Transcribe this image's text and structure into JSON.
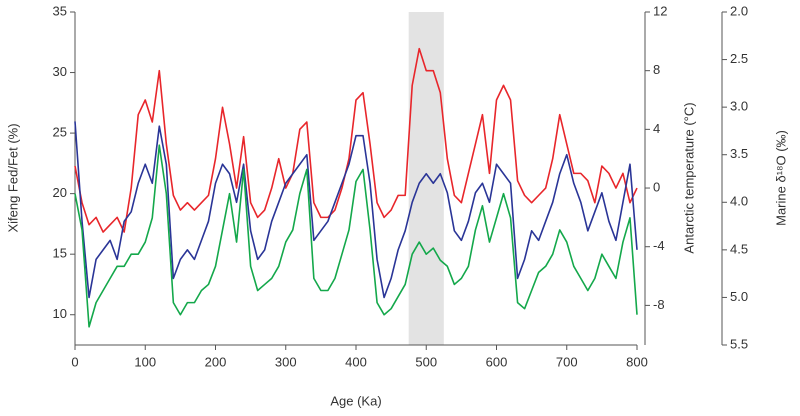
{
  "chart_data": {
    "type": "line",
    "xlabel": "Age (Ka)",
    "ylabel": "Xifeng Fed/Fet (%)",
    "y2label": "Antarctic temperature (°C)",
    "y3label": "Marine δ¹⁸O (‰)",
    "xlim": [
      0,
      800
    ],
    "xticks": [
      0,
      100,
      200,
      300,
      400,
      500,
      600,
      700,
      800
    ],
    "ylim": [
      7.5,
      35
    ],
    "yticks": [
      10,
      15,
      20,
      25,
      30,
      35
    ],
    "y2lim": [
      -10.7,
      12
    ],
    "y2ticks": [
      -8,
      -4,
      0,
      4,
      8,
      12
    ],
    "y3lim": [
      5.5,
      2.0
    ],
    "y3ticks": [
      {
        "value": 2,
        "label": "2.0"
      },
      2.5,
      {
        "value": 3,
        "label": "3.0"
      },
      3.5,
      {
        "value": 4,
        "label": "4.0"
      },
      4.5,
      {
        "value": 5,
        "label": "5.0"
      },
      5.5
    ],
    "shaded_range": [
      475,
      525
    ],
    "x": [
      0,
      10,
      20,
      30,
      40,
      50,
      60,
      70,
      80,
      90,
      100,
      110,
      120,
      130,
      140,
      150,
      160,
      170,
      180,
      190,
      200,
      210,
      220,
      230,
      240,
      250,
      260,
      270,
      280,
      290,
      300,
      310,
      320,
      330,
      340,
      350,
      360,
      370,
      380,
      390,
      400,
      410,
      420,
      430,
      440,
      450,
      460,
      470,
      480,
      490,
      500,
      510,
      520,
      530,
      540,
      550,
      560,
      570,
      580,
      590,
      600,
      610,
      620,
      630,
      640,
      650,
      660,
      670,
      680,
      690,
      700,
      710,
      720,
      730,
      740,
      750,
      760,
      770,
      780,
      790,
      800
    ],
    "series": [
      {
        "color": "#e8262b",
        "axis": "y2",
        "values": [
          1.5,
          -1,
          -2.5,
          -2,
          -3,
          -2.5,
          -2,
          -3,
          0,
          5,
          6,
          4.5,
          8,
          3,
          -0.5,
          -1.5,
          -1,
          -1.5,
          -1,
          -0.5,
          2,
          5.5,
          3,
          0,
          3.5,
          -1,
          -2,
          -1.5,
          0,
          2,
          0,
          1,
          4,
          4.5,
          -1,
          -2,
          -2,
          -1.5,
          0,
          2,
          6,
          6.5,
          3,
          -1,
          -2,
          -1.5,
          -0.5,
          -0.5,
          7,
          9.5,
          8,
          8,
          6.5,
          2,
          -0.5,
          -1,
          1,
          3,
          5,
          1,
          6,
          7,
          6,
          0.5,
          -0.5,
          -1,
          -0.5,
          0,
          2,
          5,
          3,
          1,
          1,
          0.5,
          -1,
          1.5,
          1,
          0,
          1,
          -1,
          0
        ]
      },
      {
        "color": "#2a3597",
        "axis": "y3",
        "values": [
          3.15,
          4.2,
          5.0,
          4.6,
          4.5,
          4.4,
          4.6,
          4.2,
          4.1,
          3.8,
          3.6,
          3.8,
          3.2,
          3.6,
          4.8,
          4.6,
          4.5,
          4.6,
          4.4,
          4.2,
          3.8,
          3.6,
          3.7,
          4.0,
          3.6,
          4.3,
          4.6,
          4.5,
          4.2,
          4.0,
          3.8,
          3.7,
          3.6,
          3.5,
          4.4,
          4.3,
          4.2,
          4.0,
          3.8,
          3.6,
          3.3,
          3.3,
          3.8,
          4.6,
          5.0,
          4.8,
          4.5,
          4.3,
          4.0,
          3.8,
          3.7,
          3.8,
          3.7,
          3.9,
          4.3,
          4.4,
          4.2,
          3.9,
          3.8,
          4.0,
          3.6,
          3.7,
          3.8,
          4.8,
          4.6,
          4.3,
          4.4,
          4.2,
          4.0,
          3.7,
          3.5,
          3.8,
          4.0,
          4.3,
          4.1,
          3.9,
          4.2,
          4.4,
          4.0,
          3.6,
          4.5
        ]
      },
      {
        "color": "#14a84b",
        "axis": "y",
        "values": [
          20,
          17,
          9,
          11,
          12,
          13,
          14,
          14,
          15,
          15,
          16,
          18,
          24,
          20,
          11,
          10,
          11,
          11,
          12,
          12.5,
          14,
          17,
          20,
          16,
          22,
          14,
          12,
          12.5,
          13,
          14,
          16,
          17,
          20,
          22,
          13,
          12,
          12,
          13,
          15,
          17,
          21,
          22,
          17,
          11,
          10,
          10.5,
          11.5,
          12.5,
          15,
          16,
          15,
          15.5,
          14.5,
          14,
          12.5,
          13,
          14,
          17,
          19,
          16,
          18,
          20,
          18,
          11,
          10.5,
          12,
          13.5,
          14,
          15,
          17,
          16,
          14,
          13,
          12,
          13,
          15,
          14,
          13,
          16,
          18,
          10
        ]
      }
    ]
  }
}
